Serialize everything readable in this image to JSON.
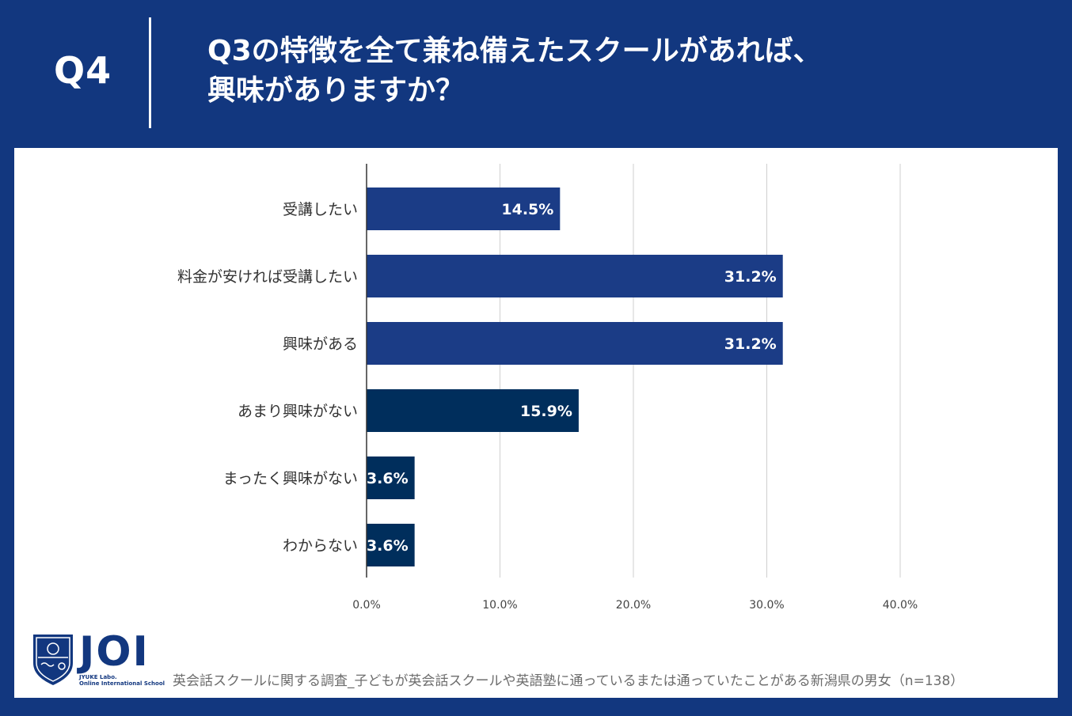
{
  "header": {
    "badge": "Q4",
    "title_line1": "Q3の特徴を全て兼ね備えたスクールがあれば、",
    "title_line2": "興味がありますか？"
  },
  "chart_data": {
    "type": "bar",
    "orientation": "horizontal",
    "categories": [
      "受講したい",
      "料金が安ければ受講したい",
      "興味がある",
      "あまり興味がない",
      "まったく興味がない",
      "わからない"
    ],
    "values": [
      14.5,
      31.2,
      31.2,
      15.9,
      3.6,
      3.6
    ],
    "value_labels": [
      "14.5%",
      "31.2%",
      "31.2%",
      "15.9%",
      "3.6%",
      "3.6%"
    ],
    "bar_colors": [
      "#1b3c86",
      "#1b3c86",
      "#1b3c86",
      "#002e5c",
      "#002e5c",
      "#002e5c"
    ],
    "xlim": [
      0,
      40
    ],
    "xticks": [
      0,
      10,
      20,
      30,
      40
    ],
    "xtick_labels": [
      "0.0%",
      "10.0%",
      "20.0%",
      "30.0%",
      "40.0%"
    ],
    "grid": true,
    "title": "",
    "xlabel": "",
    "ylabel": ""
  },
  "footer": {
    "note": "英会話スクールに関する調査_子どもが英会話スクールや英語塾に通っているまたは通っていたことがある新潟県の男女（n=138）",
    "logo_text": "JOI",
    "logo_sub1": "JYUKE Labo.",
    "logo_sub2": "Online International School"
  },
  "colors": {
    "background": "#12377f",
    "panel": "#ffffff",
    "gridline": "#cfcfcf"
  }
}
